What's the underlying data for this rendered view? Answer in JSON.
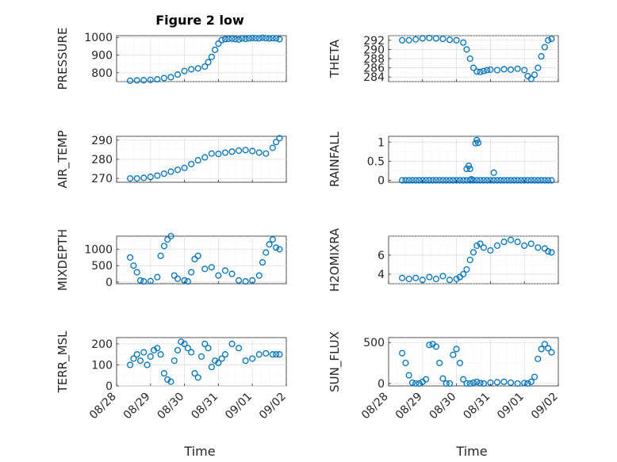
{
  "figure": {
    "title": "Figure 2 low",
    "xlabel": "Time"
  },
  "colors": {
    "marker": "#0072BD",
    "axes": "#262626",
    "grid": "#dcdcdc"
  },
  "chart_data": [
    {
      "id": "pressure",
      "type": "scatter",
      "title": "Figure 2 low",
      "ylabel": "PRESSURE",
      "ylim": [
        750,
        1010
      ],
      "yticks": [
        "800",
        "900",
        "1000"
      ],
      "ytick_values": [
        800,
        900,
        1000
      ],
      "xlim": [
        28.0,
        30.5
      ],
      "xticks": [],
      "grid": "on",
      "x": [
        28.2,
        28.3,
        28.4,
        28.5,
        28.6,
        28.7,
        28.8,
        28.9,
        29.0,
        29.1,
        29.2,
        29.3,
        29.35,
        29.4,
        29.45,
        29.5,
        29.55,
        29.6,
        29.65,
        29.7,
        29.75,
        29.8,
        29.85,
        29.9,
        29.95,
        30.0,
        30.05,
        30.1,
        30.15,
        30.2,
        30.25,
        30.3,
        30.35,
        30.4
      ],
      "y": [
        755,
        757,
        758,
        760,
        763,
        770,
        775,
        790,
        810,
        820,
        825,
        835,
        860,
        890,
        930,
        965,
        985,
        990,
        992,
        993,
        990,
        988,
        994,
        992,
        995,
        997,
        996,
        995,
        998,
        996,
        994,
        996,
        995,
        990
      ]
    },
    {
      "id": "theta",
      "type": "scatter",
      "ylabel": "THETA",
      "ylim": [
        283,
        293
      ],
      "yticks": [
        "284",
        "286",
        "288",
        "290",
        "292"
      ],
      "ytick_values": [
        284,
        286,
        288,
        290,
        292
      ],
      "xlim": [
        28.0,
        30.5
      ],
      "xticks": [],
      "grid": "on",
      "x": [
        28.2,
        28.3,
        28.4,
        28.5,
        28.6,
        28.7,
        28.8,
        28.9,
        29.0,
        29.1,
        29.15,
        29.2,
        29.25,
        29.3,
        29.35,
        29.4,
        29.45,
        29.5,
        29.6,
        29.7,
        29.8,
        29.9,
        30.0,
        30.05,
        30.1,
        30.15,
        30.2,
        30.25,
        30.3,
        30.35,
        30.4
      ],
      "y": [
        292,
        292,
        292.2,
        292.4,
        292.5,
        292.4,
        292.3,
        292.1,
        292.0,
        291.5,
        290.0,
        288.0,
        286.0,
        285.2,
        285.1,
        285.3,
        285.5,
        285.6,
        285.5,
        285.7,
        285.6,
        285.8,
        285.5,
        284.2,
        283.6,
        284.5,
        286.0,
        288.5,
        290.5,
        292.0,
        292.3
      ]
    },
    {
      "id": "air_temp",
      "type": "scatter",
      "ylabel": "AIR_TEMP",
      "ylim": [
        268,
        292
      ],
      "yticks": [
        "270",
        "280",
        "290"
      ],
      "ytick_values": [
        270,
        280,
        290
      ],
      "xlim": [
        28.0,
        30.5
      ],
      "xticks": [],
      "grid": "on",
      "x": [
        28.2,
        28.3,
        28.4,
        28.5,
        28.6,
        28.7,
        28.8,
        28.9,
        29.0,
        29.1,
        29.2,
        29.3,
        29.4,
        29.5,
        29.6,
        29.7,
        29.8,
        29.9,
        30.0,
        30.1,
        30.2,
        30.3,
        30.35,
        30.4
      ],
      "y": [
        270.0,
        270.0,
        270.3,
        270.8,
        271.5,
        272.5,
        273.5,
        274.5,
        275.5,
        277.5,
        279.5,
        281.0,
        283.0,
        282.8,
        283.5,
        284.0,
        284.5,
        284.8,
        284.3,
        283.5,
        283.0,
        286.0,
        289.0,
        291.0
      ]
    },
    {
      "id": "rainfall",
      "type": "scatter",
      "ylabel": "RAINFALL",
      "ylim": [
        -0.05,
        1.15
      ],
      "yticks": [
        "0",
        "0.5",
        "1"
      ],
      "ytick_values": [
        0,
        0.5,
        1
      ],
      "xlim": [
        28.0,
        30.5
      ],
      "xticks": [],
      "grid": "on",
      "x": [
        28.2,
        28.25,
        28.3,
        28.35,
        28.4,
        28.45,
        28.5,
        28.55,
        28.6,
        28.65,
        28.7,
        28.75,
        28.8,
        28.85,
        28.9,
        28.95,
        29.0,
        29.05,
        29.1,
        29.15,
        29.2,
        29.25,
        29.3,
        29.35,
        29.4,
        29.45,
        29.5,
        29.55,
        29.6,
        29.65,
        29.7,
        29.75,
        29.8,
        29.85,
        29.9,
        29.95,
        30.0,
        30.05,
        30.1,
        30.15,
        30.2,
        30.25,
        30.3,
        30.35,
        30.4,
        29.15,
        29.18,
        29.2,
        29.22,
        29.28,
        29.3,
        29.32,
        29.55
      ],
      "y": [
        0,
        0,
        0,
        0,
        0,
        0,
        0,
        0,
        0,
        0,
        0,
        0,
        0,
        0,
        0,
        0,
        0,
        0,
        0,
        0,
        0,
        0,
        0,
        0,
        0,
        0,
        0,
        0,
        0,
        0,
        0,
        0,
        0,
        0,
        0,
        0,
        0,
        0,
        0,
        0,
        0,
        0,
        0,
        0,
        0,
        0.3,
        0.38,
        0.3,
        0.03,
        0.97,
        1.05,
        0.98,
        0.2
      ]
    },
    {
      "id": "mixdepth",
      "type": "scatter",
      "ylabel": "MIXDEPTH",
      "ylim": [
        -50,
        1400
      ],
      "yticks": [
        "0",
        "500",
        "1000"
      ],
      "ytick_values": [
        0,
        500,
        1000
      ],
      "xlim": [
        28.0,
        30.5
      ],
      "xticks": [],
      "grid": "on",
      "x": [
        28.2,
        28.25,
        28.3,
        28.35,
        28.4,
        28.5,
        28.6,
        28.65,
        28.7,
        28.75,
        28.8,
        28.85,
        28.9,
        29.0,
        29.05,
        29.1,
        29.15,
        29.2,
        29.3,
        29.4,
        29.5,
        29.6,
        29.7,
        29.8,
        29.9,
        30.0,
        30.1,
        30.15,
        30.2,
        30.25,
        30.3,
        30.35,
        30.4
      ],
      "y": [
        750,
        500,
        300,
        50,
        20,
        30,
        150,
        800,
        1100,
        1300,
        1400,
        200,
        100,
        50,
        20,
        300,
        700,
        800,
        400,
        450,
        200,
        350,
        250,
        50,
        20,
        50,
        200,
        600,
        900,
        1150,
        1300,
        1050,
        1000
      ]
    },
    {
      "id": "h2omixra",
      "type": "scatter",
      "ylabel": "H2OMIXRA",
      "ylim": [
        3.0,
        8.0
      ],
      "yticks": [
        "4",
        "6"
      ],
      "ytick_values": [
        4,
        6
      ],
      "xlim": [
        28.0,
        30.5
      ],
      "xticks": [],
      "grid": "on",
      "x": [
        28.2,
        28.3,
        28.4,
        28.5,
        28.6,
        28.7,
        28.8,
        28.9,
        29.0,
        29.05,
        29.1,
        29.15,
        29.2,
        29.25,
        29.3,
        29.35,
        29.4,
        29.5,
        29.6,
        29.7,
        29.8,
        29.9,
        30.0,
        30.1,
        30.2,
        30.3,
        30.35,
        30.4
      ],
      "y": [
        3.6,
        3.5,
        3.6,
        3.4,
        3.7,
        3.5,
        3.8,
        3.4,
        3.5,
        3.7,
        4.0,
        4.5,
        5.5,
        6.3,
        7.0,
        7.2,
        6.8,
        6.5,
        7.0,
        7.4,
        7.6,
        7.4,
        7.0,
        7.2,
        6.8,
        6.7,
        6.4,
        6.3
      ]
    },
    {
      "id": "terr_msl",
      "type": "scatter",
      "ylabel": "TERR_MSL",
      "ylim": [
        0,
        230
      ],
      "yticks": [
        "0",
        "100",
        "200"
      ],
      "ytick_values": [
        0,
        100,
        200
      ],
      "xlim": [
        28.0,
        30.5
      ],
      "xticks": [
        "08/28",
        "08/29",
        "08/30",
        "08/31",
        "09/01",
        "09/02"
      ],
      "xtick_values": [
        28,
        29,
        30,
        31,
        32,
        33
      ],
      "grid": "on",
      "x": [
        28.2,
        28.25,
        28.3,
        28.35,
        28.4,
        28.45,
        28.5,
        28.55,
        28.6,
        28.65,
        28.7,
        28.75,
        28.8,
        28.85,
        28.9,
        28.95,
        29.0,
        29.05,
        29.1,
        29.15,
        29.2,
        29.25,
        29.3,
        29.35,
        29.4,
        29.45,
        29.5,
        29.55,
        29.6,
        29.7,
        29.8,
        29.9,
        30.0,
        30.1,
        30.2,
        30.3,
        30.35,
        30.4
      ],
      "y": [
        100,
        130,
        150,
        120,
        160,
        100,
        140,
        170,
        180,
        150,
        60,
        30,
        20,
        120,
        170,
        210,
        200,
        180,
        160,
        60,
        40,
        140,
        200,
        180,
        90,
        120,
        110,
        130,
        150,
        200,
        180,
        120,
        130,
        150,
        155,
        150,
        150,
        150
      ]
    },
    {
      "id": "sun_flux",
      "type": "scatter",
      "ylabel": "SUN_FLUX",
      "ylim": [
        -30,
        560
      ],
      "yticks": [
        "0",
        "500"
      ],
      "ytick_values": [
        0,
        500
      ],
      "xlim": [
        28.0,
        30.5
      ],
      "xticks": [
        "08/28",
        "08/29",
        "08/30",
        "08/31",
        "09/01",
        "09/02"
      ],
      "xtick_values": [
        28,
        29,
        30,
        31,
        32,
        33
      ],
      "grid": "on",
      "x": [
        28.2,
        28.25,
        28.3,
        28.35,
        28.4,
        28.45,
        28.5,
        28.55,
        28.6,
        28.65,
        28.7,
        28.75,
        28.8,
        28.85,
        28.9,
        28.95,
        29.0,
        29.05,
        29.1,
        29.15,
        29.2,
        29.25,
        29.3,
        29.35,
        29.4,
        29.5,
        29.6,
        29.7,
        29.8,
        29.9,
        30.0,
        30.05,
        30.1,
        30.15,
        30.2,
        30.25,
        30.3,
        30.35,
        30.4
      ],
      "y": [
        370,
        250,
        100,
        10,
        0,
        0,
        20,
        50,
        470,
        480,
        450,
        250,
        60,
        0,
        0,
        350,
        420,
        250,
        50,
        0,
        0,
        10,
        20,
        5,
        0,
        10,
        15,
        20,
        10,
        0,
        5,
        0,
        20,
        80,
        300,
        420,
        480,
        430,
        380
      ]
    }
  ]
}
